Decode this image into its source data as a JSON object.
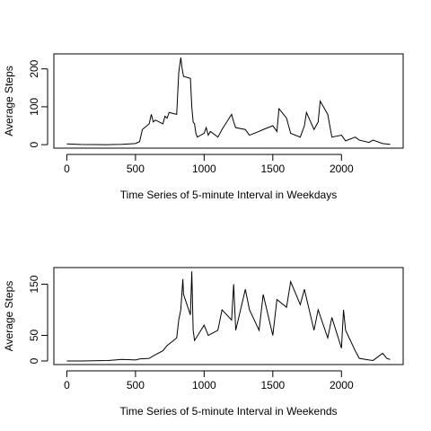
{
  "chart_data": [
    {
      "type": "line",
      "x_label": "Time Series of 5-minute Interval in Weekdays",
      "y_label": "Average Steps",
      "x": [
        0,
        100,
        200,
        300,
        400,
        500,
        530,
        550,
        600,
        615,
        630,
        645,
        700,
        715,
        730,
        745,
        800,
        815,
        830,
        840,
        850,
        900,
        910,
        920,
        930,
        940,
        950,
        1000,
        1015,
        1030,
        1045,
        1100,
        1130,
        1200,
        1215,
        1230,
        1300,
        1330,
        1400,
        1430,
        1500,
        1530,
        1545,
        1600,
        1630,
        1700,
        1730,
        1745,
        1800,
        1830,
        1845,
        1900,
        1930,
        2000,
        2030,
        2100,
        2130,
        2200,
        2230,
        2300,
        2355
      ],
      "values": [
        2,
        0.5,
        0.2,
        0.1,
        1,
        3,
        8,
        40,
        55,
        80,
        60,
        65,
        55,
        75,
        70,
        85,
        80,
        190,
        230,
        200,
        180,
        175,
        100,
        60,
        55,
        30,
        20,
        30,
        45,
        25,
        35,
        20,
        40,
        80,
        60,
        45,
        40,
        25,
        35,
        40,
        50,
        35,
        95,
        70,
        30,
        20,
        50,
        85,
        40,
        60,
        115,
        80,
        20,
        25,
        10,
        20,
        12,
        6,
        12,
        3,
        1
      ],
      "color": "#000000",
      "xlim": [
        -94.2,
        2449.2
      ],
      "ylim": [
        -9.2,
        239.6
      ],
      "xticks": [
        0,
        500,
        1000,
        1500,
        2000
      ],
      "yticks": [
        0,
        100,
        200
      ]
    },
    {
      "type": "line",
      "x_label": "Time Series of 5-minute Interval in Weekends",
      "y_label": "Average Steps",
      "x": [
        0,
        100,
        200,
        300,
        400,
        500,
        530,
        600,
        630,
        700,
        730,
        800,
        815,
        830,
        845,
        850,
        900,
        910,
        920,
        930,
        1000,
        1030,
        1100,
        1130,
        1200,
        1215,
        1230,
        1300,
        1330,
        1400,
        1430,
        1500,
        1530,
        1600,
        1630,
        1700,
        1730,
        1800,
        1830,
        1900,
        1930,
        2000,
        2015,
        2030,
        2100,
        2130,
        2200,
        2230,
        2300,
        2330,
        2355
      ],
      "values": [
        0,
        0,
        0.5,
        1,
        3,
        2,
        4,
        5,
        10,
        20,
        30,
        45,
        80,
        100,
        160,
        130,
        90,
        175,
        60,
        40,
        70,
        50,
        60,
        100,
        80,
        150,
        60,
        140,
        100,
        60,
        130,
        50,
        120,
        105,
        155,
        110,
        140,
        60,
        100,
        45,
        85,
        25,
        100,
        60,
        20,
        5,
        2,
        1,
        15,
        5,
        3
      ],
      "color": "#000000",
      "xlim": [
        -94.2,
        2449.2
      ],
      "ylim": [
        -7.0,
        182.5
      ],
      "xticks": [
        0,
        500,
        1000,
        1500,
        2000
      ],
      "yticks": [
        0,
        50,
        150
      ]
    }
  ]
}
